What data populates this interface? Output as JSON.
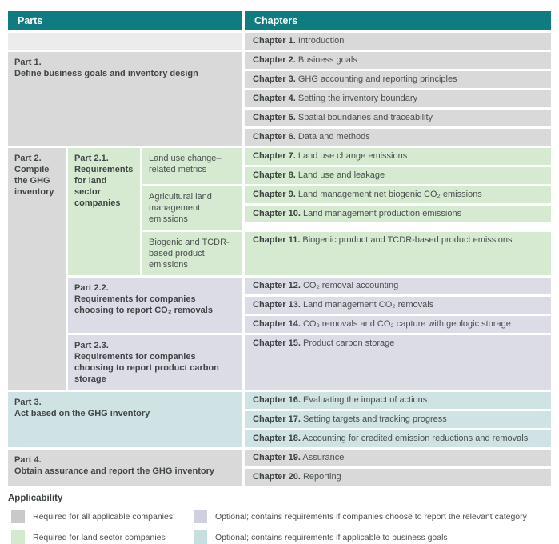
{
  "header": {
    "parts_label": "Parts",
    "chapters_label": "Chapters"
  },
  "colors": {
    "header_bg": "#0e7c80",
    "required_all": "#d9d9d9",
    "required_land_sector": "#d6e9d1",
    "optional_category": "#dcdce7",
    "optional_business_goals": "#cfe2e4"
  },
  "parts": {
    "part1": {
      "num": "Part 1.",
      "title": "Define business goals and inventory design"
    },
    "part2": {
      "num": "Part 2.",
      "title": "Compile the GHG inventory"
    },
    "part2_1": {
      "num": "Part 2.1.",
      "title": "Requirements for land sector companies"
    },
    "part2_1_groups": [
      "Land use change–related metrics",
      "Agricultural land management emissions",
      "Biogenic and TCDR-based product emissions"
    ],
    "part2_2": {
      "num": "Part 2.2.",
      "title": "Requirements for companies choosing to report CO₂ removals"
    },
    "part2_3": {
      "num": "Part 2.3.",
      "title": "Requirements for companies choosing to report product carbon storage"
    },
    "part3": {
      "num": "Part 3.",
      "title": "Act based on the GHG inventory"
    },
    "part4": {
      "num": "Part 4.",
      "title": "Obtain assurance and report the GHG inventory"
    }
  },
  "chapters": [
    {
      "num": "Chapter 1.",
      "title": "Introduction"
    },
    {
      "num": "Chapter 2.",
      "title": "Business goals"
    },
    {
      "num": "Chapter 3.",
      "title": "GHG accounting and reporting principles"
    },
    {
      "num": "Chapter 4.",
      "title": "Setting the inventory boundary"
    },
    {
      "num": "Chapter 5.",
      "title": "Spatial boundaries and traceability"
    },
    {
      "num": "Chapter 6.",
      "title": "Data and methods"
    },
    {
      "num": "Chapter 7.",
      "title": "Land use change emissions"
    },
    {
      "num": "Chapter 8.",
      "title": "Land use and leakage"
    },
    {
      "num": "Chapter 9.",
      "title": "Land management net biogenic CO₂ emissions"
    },
    {
      "num": "Chapter 10.",
      "title": "Land management production emissions"
    },
    {
      "num": "Chapter 11.",
      "title": "Biogenic product and TCDR-based product emissions"
    },
    {
      "num": "Chapter 12.",
      "title": "CO₂ removal accounting"
    },
    {
      "num": "Chapter 13.",
      "title": "Land management CO₂ removals"
    },
    {
      "num": "Chapter 14.",
      "title": "CO₂ removals and CO₂ capture with geologic storage"
    },
    {
      "num": "Chapter 15.",
      "title": "Product carbon storage"
    },
    {
      "num": "Chapter 16.",
      "title": "Evaluating the impact of actions"
    },
    {
      "num": "Chapter 17.",
      "title": "Setting targets and tracking progress"
    },
    {
      "num": "Chapter 18.",
      "title": "Accounting for credited emission reductions and removals"
    },
    {
      "num": "Chapter 19.",
      "title": "Assurance"
    },
    {
      "num": "Chapter 20.",
      "title": "Reporting"
    }
  ],
  "legend": {
    "title": "Applicability",
    "items": [
      {
        "color_name": "gray",
        "label": "Required for all applicable companies"
      },
      {
        "color_name": "purple",
        "label": "Optional; contains requirements if companies choose to report the relevant category"
      },
      {
        "color_name": "green",
        "label": "Required for land sector companies"
      },
      {
        "color_name": "teal",
        "label": "Optional; contains requirements if applicable to business goals"
      }
    ]
  }
}
